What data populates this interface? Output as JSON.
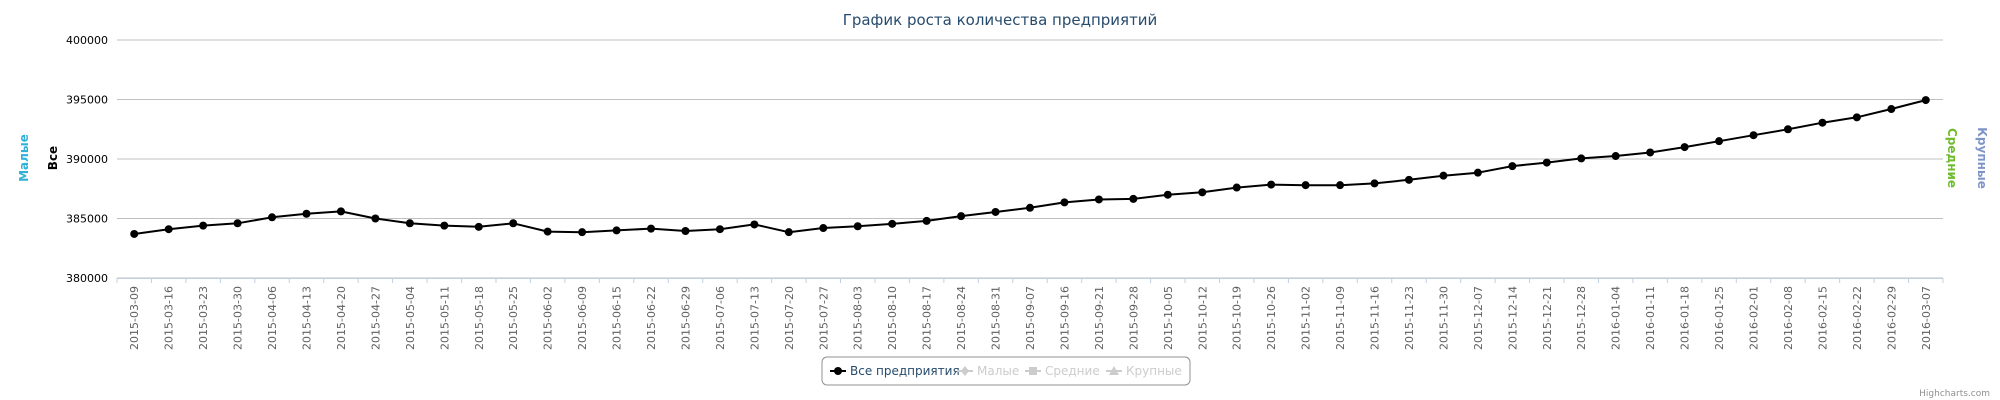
{
  "chart_data": {
    "type": "line",
    "title": "График роста количества предприятий",
    "ylim": [
      380000,
      400000
    ],
    "yticks": [
      "380000",
      "385000",
      "390000",
      "395000",
      "400000"
    ],
    "ytick_values": [
      380000,
      385000,
      390000,
      395000,
      400000
    ],
    "axis_titles": {
      "left_outer": "Малые",
      "left_inner": "Все",
      "right_inner": "Средние",
      "right_outer": "Крупные"
    },
    "axis_colors": {
      "left_outer": "#2fb1d8",
      "left_inner": "#000000",
      "right_inner": "#6fbc2d",
      "right_outer": "#7f95c8"
    },
    "grid": true,
    "legend_position": "bottom-center",
    "x": [
      "2015-03-09",
      "2015-03-16",
      "2015-03-23",
      "2015-03-30",
      "2015-04-06",
      "2015-04-13",
      "2015-04-20",
      "2015-04-27",
      "2015-05-04",
      "2015-05-11",
      "2015-05-18",
      "2015-05-25",
      "2015-06-02",
      "2015-06-09",
      "2015-06-15",
      "2015-06-22",
      "2015-06-29",
      "2015-07-06",
      "2015-07-13",
      "2015-07-20",
      "2015-07-27",
      "2015-08-03",
      "2015-08-10",
      "2015-08-17",
      "2015-08-24",
      "2015-08-31",
      "2015-09-07",
      "2015-09-16",
      "2015-09-21",
      "2015-09-28",
      "2015-10-05",
      "2015-10-12",
      "2015-10-19",
      "2015-10-26",
      "2015-11-02",
      "2015-11-09",
      "2015-11-16",
      "2015-11-23",
      "2015-11-30",
      "2015-12-07",
      "2015-12-14",
      "2015-12-21",
      "2015-12-28",
      "2016-01-04",
      "2016-01-11",
      "2016-01-18",
      "2016-01-25",
      "2016-02-01",
      "2016-02-08",
      "2016-02-15",
      "2016-02-22",
      "2016-02-29",
      "2016-03-07"
    ],
    "series": [
      {
        "name": "Все предприятия",
        "color": "#000000",
        "visible": true,
        "values": [
          383700,
          384100,
          384400,
          384600,
          385100,
          385400,
          385600,
          385000,
          384600,
          384400,
          384300,
          384600,
          383900,
          383850,
          384000,
          384150,
          383950,
          384100,
          384500,
          383850,
          384200,
          384350,
          384550,
          384800,
          385200,
          385550,
          385900,
          386350,
          386600,
          386650,
          387000,
          387200,
          387600,
          387850,
          387800,
          387800,
          387950,
          388250,
          388600,
          388850,
          389400,
          389700,
          390050,
          390250,
          390550,
          391000,
          391500,
          392000,
          392500,
          393050,
          393500,
          394200,
          394950
        ]
      },
      {
        "name": "Малые",
        "visible": false,
        "marker": "diamond"
      },
      {
        "name": "Средние",
        "visible": false,
        "marker": "square"
      },
      {
        "name": "Крупные",
        "visible": false,
        "marker": "triangle"
      }
    ],
    "credit": "Highcharts.com"
  }
}
